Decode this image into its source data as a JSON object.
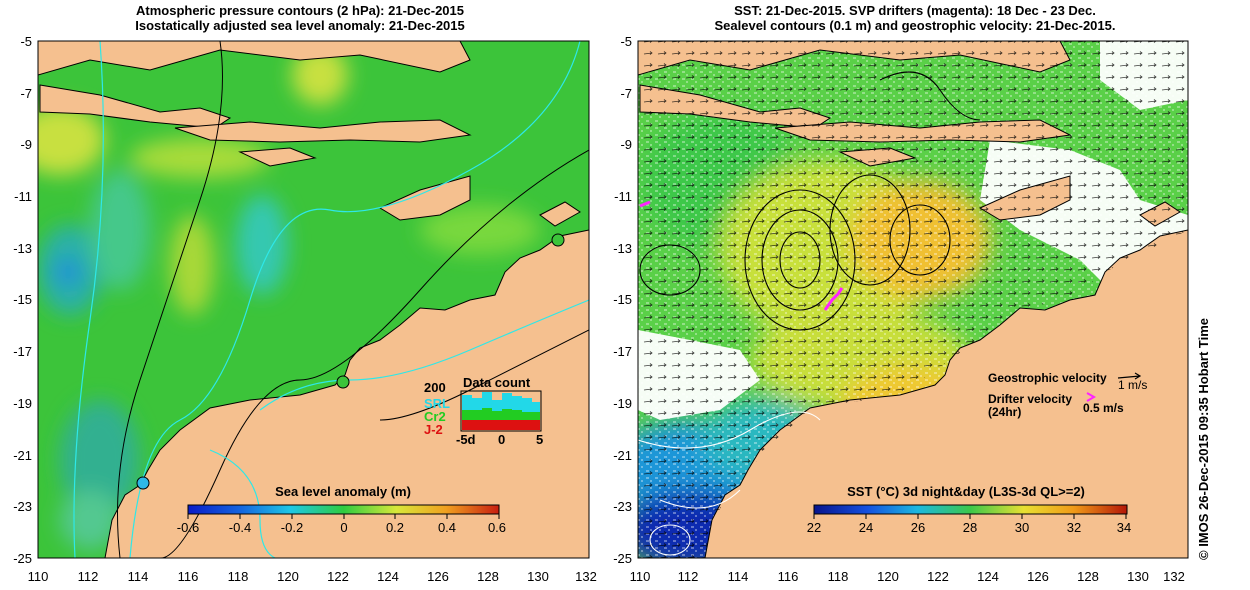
{
  "left_panel": {
    "title_line1": "Atmospheric pressure contours (2 hPa): 21-Dec-2015",
    "title_line2": "Isostatically adjusted sea level anomaly: 21-Dec-2015",
    "colorbar_title": "Sea level anomaly (m)",
    "colorbar_ticks": [
      "-0.6",
      "-0.4",
      "-0.2",
      "0",
      "0.2",
      "0.4",
      "0.6"
    ],
    "data_count": {
      "title": "Data count",
      "scale_label": "200",
      "series": [
        "SRL",
        "Cr2",
        "J-2"
      ],
      "series_colors": [
        "#22d8e8",
        "#22cc22",
        "#dd1111"
      ],
      "x_ticks": [
        "-5d",
        "0",
        "5"
      ]
    }
  },
  "right_panel": {
    "title_line1": "SST: 21-Dec-2015. SVP drifters (magenta): 18 Dec - 23 Dec.",
    "title_line2": "Sealevel contours (0.1 m) and geostrophic velocity: 21-Dec-2015.",
    "colorbar_title": "SST (°C) 3d night&day (L3S-3d QL>=2)",
    "colorbar_ticks": [
      "22",
      "24",
      "26",
      "28",
      "30",
      "32",
      "34"
    ],
    "legend": {
      "geostrophic_label": "Geostrophic velocity",
      "geostrophic_scale": "1 m/s",
      "drifter_label": "Drifter velocity",
      "drifter_sub": "(24hr)",
      "drifter_scale": "0.5 m/s"
    }
  },
  "axes": {
    "y_ticks": [
      "-5",
      "-7",
      "-9",
      "-11",
      "-13",
      "-15",
      "-17",
      "-19",
      "-21",
      "-23",
      "-25"
    ],
    "x_ticks": [
      "110",
      "112",
      "114",
      "116",
      "118",
      "120",
      "122",
      "124",
      "126",
      "128",
      "130",
      "132"
    ]
  },
  "timestamp": "© IMOS 26-Dec-2015 09:35 Hobart Time",
  "colors": {
    "land": "#f5c08f",
    "ocean_green": "#3cc43a",
    "contour_cyan": "#2ee8e8",
    "drifter": "#ff22ff"
  }
}
